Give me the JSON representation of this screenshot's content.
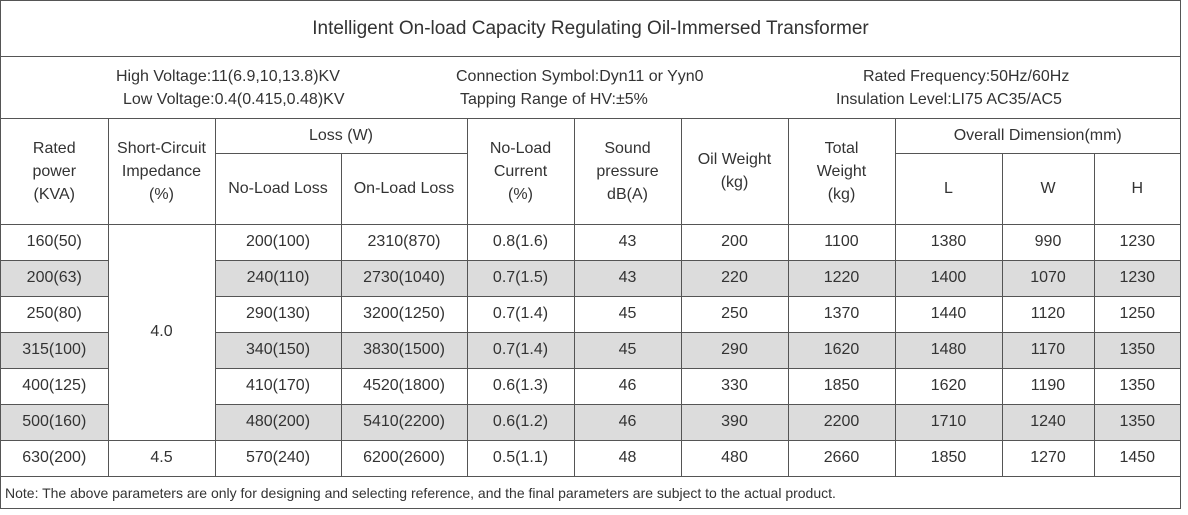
{
  "title": "Intelligent On-load Capacity Regulating Oil-Immersed Transformer",
  "specs": {
    "high_voltage": "High Voltage:11(6.9,10,13.8)KV",
    "low_voltage": "Low Voltage:0.4(0.415,0.48)KV",
    "connection_symbol": "Connection Symbol:Dyn11 or Yyn0",
    "tapping_range": "Tapping Range of HV:±5%",
    "rated_frequency": "Rated Frequency:50Hz/60Hz",
    "insulation_level": "Insulation Level:LI75 AC35/AC5"
  },
  "headers": {
    "rated_power": [
      "Rated",
      "power",
      "(KVA)"
    ],
    "impedance": [
      "Short-Circuit",
      "Impedance",
      "(%)"
    ],
    "loss": "Loss (W)",
    "no_load_loss": "No-Load Loss",
    "on_load_loss": "On-Load Loss",
    "no_load_current": [
      "No-Load",
      "Current",
      "(%)"
    ],
    "sound": [
      "Sound",
      "pressure",
      "dB(A)"
    ],
    "oil_weight": [
      "Oil Weight",
      "(kg)"
    ],
    "total_weight": [
      "Total",
      "Weight",
      "(kg)"
    ],
    "dimension": "Overall Dimension(mm)",
    "dim_l": "L",
    "dim_w": "W",
    "dim_h": "H"
  },
  "impedance_groups": [
    "4.0",
    "4.5"
  ],
  "rows": [
    [
      "160(50)",
      "200(100)",
      "2310(870)",
      "0.8(1.6)",
      "43",
      "200",
      "1100",
      "1380",
      "990",
      "1230"
    ],
    [
      "200(63)",
      "240(110)",
      "2730(1040)",
      "0.7(1.5)",
      "43",
      "220",
      "1220",
      "1400",
      "1070",
      "1230"
    ],
    [
      "250(80)",
      "290(130)",
      "3200(1250)",
      "0.7(1.4)",
      "45",
      "250",
      "1370",
      "1440",
      "1120",
      "1250"
    ],
    [
      "315(100)",
      "340(150)",
      "3830(1500)",
      "0.7(1.4)",
      "45",
      "290",
      "1620",
      "1480",
      "1170",
      "1350"
    ],
    [
      "400(125)",
      "410(170)",
      "4520(1800)",
      "0.6(1.3)",
      "46",
      "330",
      "1850",
      "1620",
      "1190",
      "1350"
    ],
    [
      "500(160)",
      "480(200)",
      "5410(2200)",
      "0.6(1.2)",
      "46",
      "390",
      "2200",
      "1710",
      "1240",
      "1350"
    ],
    [
      "630(200)",
      "570(240)",
      "6200(2600)",
      "0.5(1.1)",
      "48",
      "480",
      "2660",
      "1850",
      "1270",
      "1450"
    ]
  ],
  "note": "Note: The above parameters are only for designing and selecting  reference, and the final parameters are subject to the actual product.",
  "colors": {
    "shade": "#dcdcdc",
    "border": "#555555",
    "text": "#333333"
  }
}
